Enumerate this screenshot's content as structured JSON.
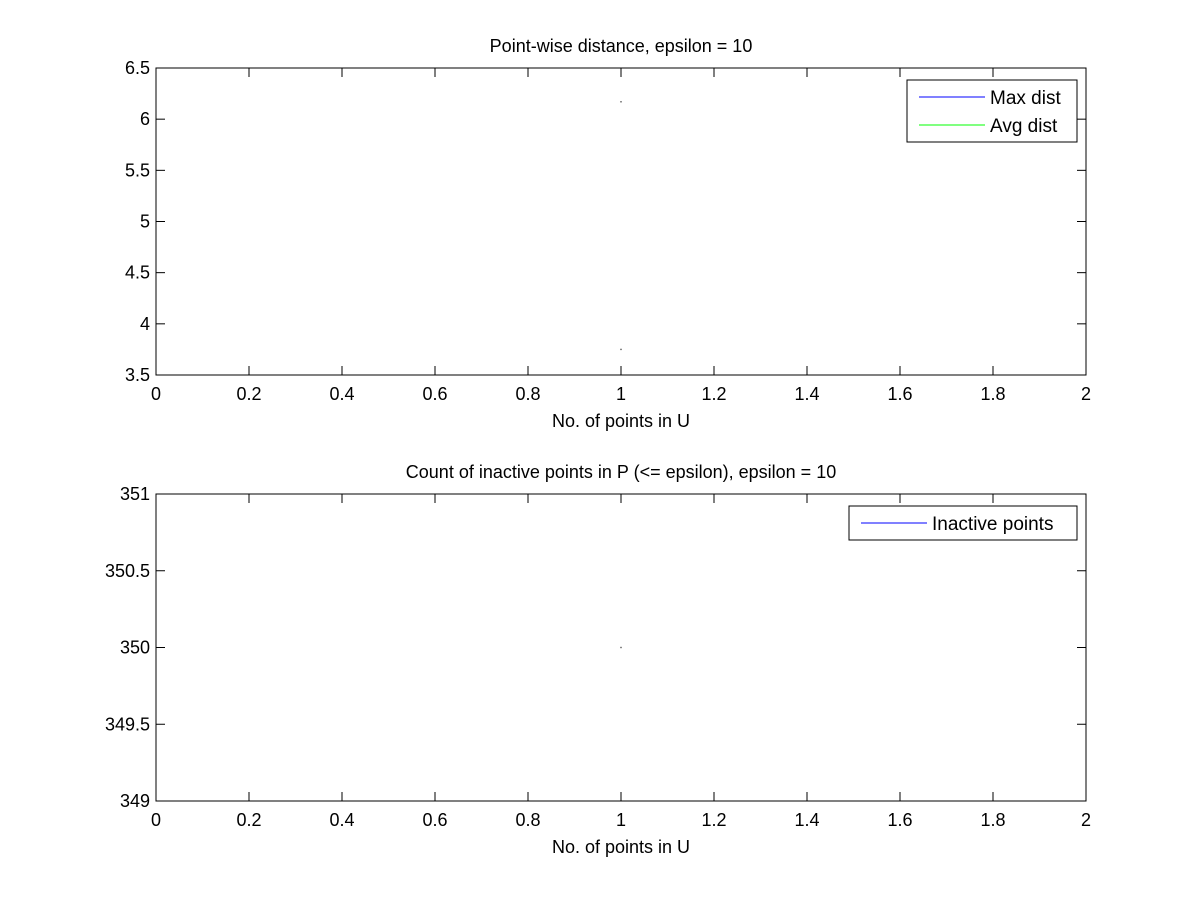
{
  "figure": {
    "background": "#ffffff"
  },
  "chart_data": [
    {
      "type": "line",
      "title": "Point-wise distance, epsilon = 10",
      "xlabel": "No. of points in U",
      "ylabel": "",
      "xlim": [
        0,
        2
      ],
      "ylim": [
        3.5,
        6.5
      ],
      "xticks": [
        "0",
        "0.2",
        "0.4",
        "0.6",
        "0.8",
        "1",
        "1.2",
        "1.4",
        "1.6",
        "1.8",
        "2"
      ],
      "yticks": [
        "3.5",
        "4",
        "4.5",
        "5",
        "5.5",
        "6",
        "6.5"
      ],
      "grid": false,
      "legend_position": "top-right",
      "series": [
        {
          "name": "Max dist",
          "color": "#0000ff",
          "x": [
            1
          ],
          "y": [
            6.17
          ]
        },
        {
          "name": "Avg dist",
          "color": "#00ff00",
          "x": [
            1
          ],
          "y": [
            3.75
          ]
        }
      ]
    },
    {
      "type": "line",
      "title": "Count of inactive points in P (<= epsilon), epsilon = 10",
      "xlabel": "No. of points in U",
      "ylabel": "",
      "xlim": [
        0,
        2
      ],
      "ylim": [
        349,
        351
      ],
      "xticks": [
        "0",
        "0.2",
        "0.4",
        "0.6",
        "0.8",
        "1",
        "1.2",
        "1.4",
        "1.6",
        "1.8",
        "2"
      ],
      "yticks": [
        "349",
        "349.5",
        "350",
        "350.5",
        "351"
      ],
      "grid": false,
      "legend_position": "top-right",
      "series": [
        {
          "name": "Inactive points",
          "color": "#0000ff",
          "x": [
            1
          ],
          "y": [
            350
          ]
        }
      ]
    }
  ]
}
